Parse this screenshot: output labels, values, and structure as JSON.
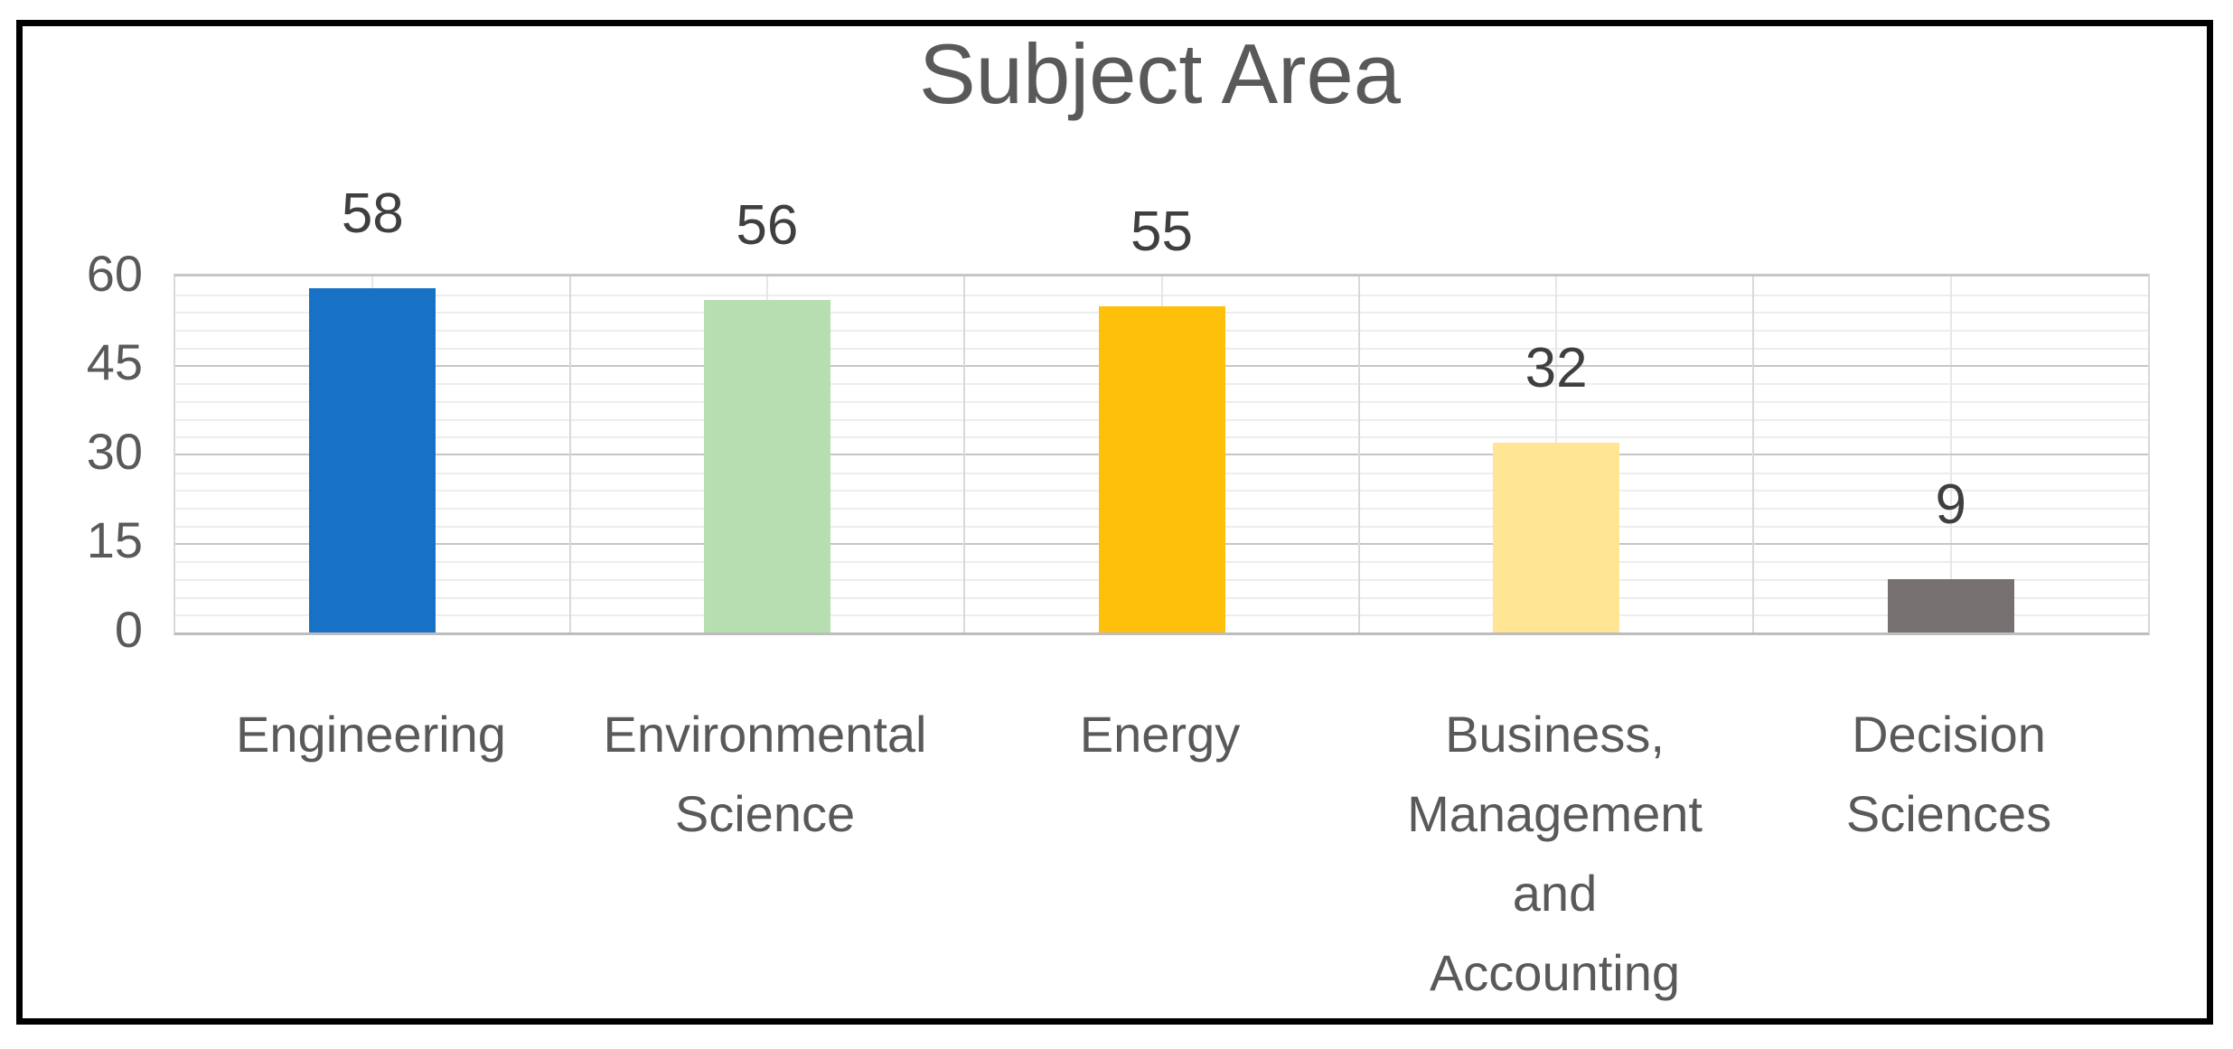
{
  "chart_data": {
    "type": "bar",
    "title": "Subject Area",
    "categories": [
      "Engineering",
      "Environmental\nScience",
      "Energy",
      "Business,\nManagement\nand\nAccounting",
      "Decision\nSciences"
    ],
    "values": [
      58,
      56,
      55,
      32,
      9
    ],
    "data_labels": [
      "58",
      "56",
      "55",
      "32",
      "9"
    ],
    "xlabel": "",
    "ylabel": "",
    "ylim": [
      0,
      60
    ],
    "y_major_ticks": [
      0,
      15,
      30,
      45,
      60
    ],
    "y_minor_unit": 3,
    "grid": true,
    "legend_position": "none",
    "bar_colors": [
      "#1772c6",
      "#b6deb0",
      "#ffc00b",
      "#ffe594",
      "#767070"
    ]
  },
  "colors": {
    "title_text": "#595959",
    "axis_label_text": "#595959",
    "data_label_text": "#3f3f3f",
    "gridline_major_h": "#c6c6c6",
    "gridline_minor_h": "#ededed",
    "gridline_v_boundary": "#d9d9d9",
    "gridline_v_center": "#e7e7e7",
    "plot_border": "#c6c6c6",
    "outer_frame": "#000000",
    "background": "#ffffff"
  }
}
